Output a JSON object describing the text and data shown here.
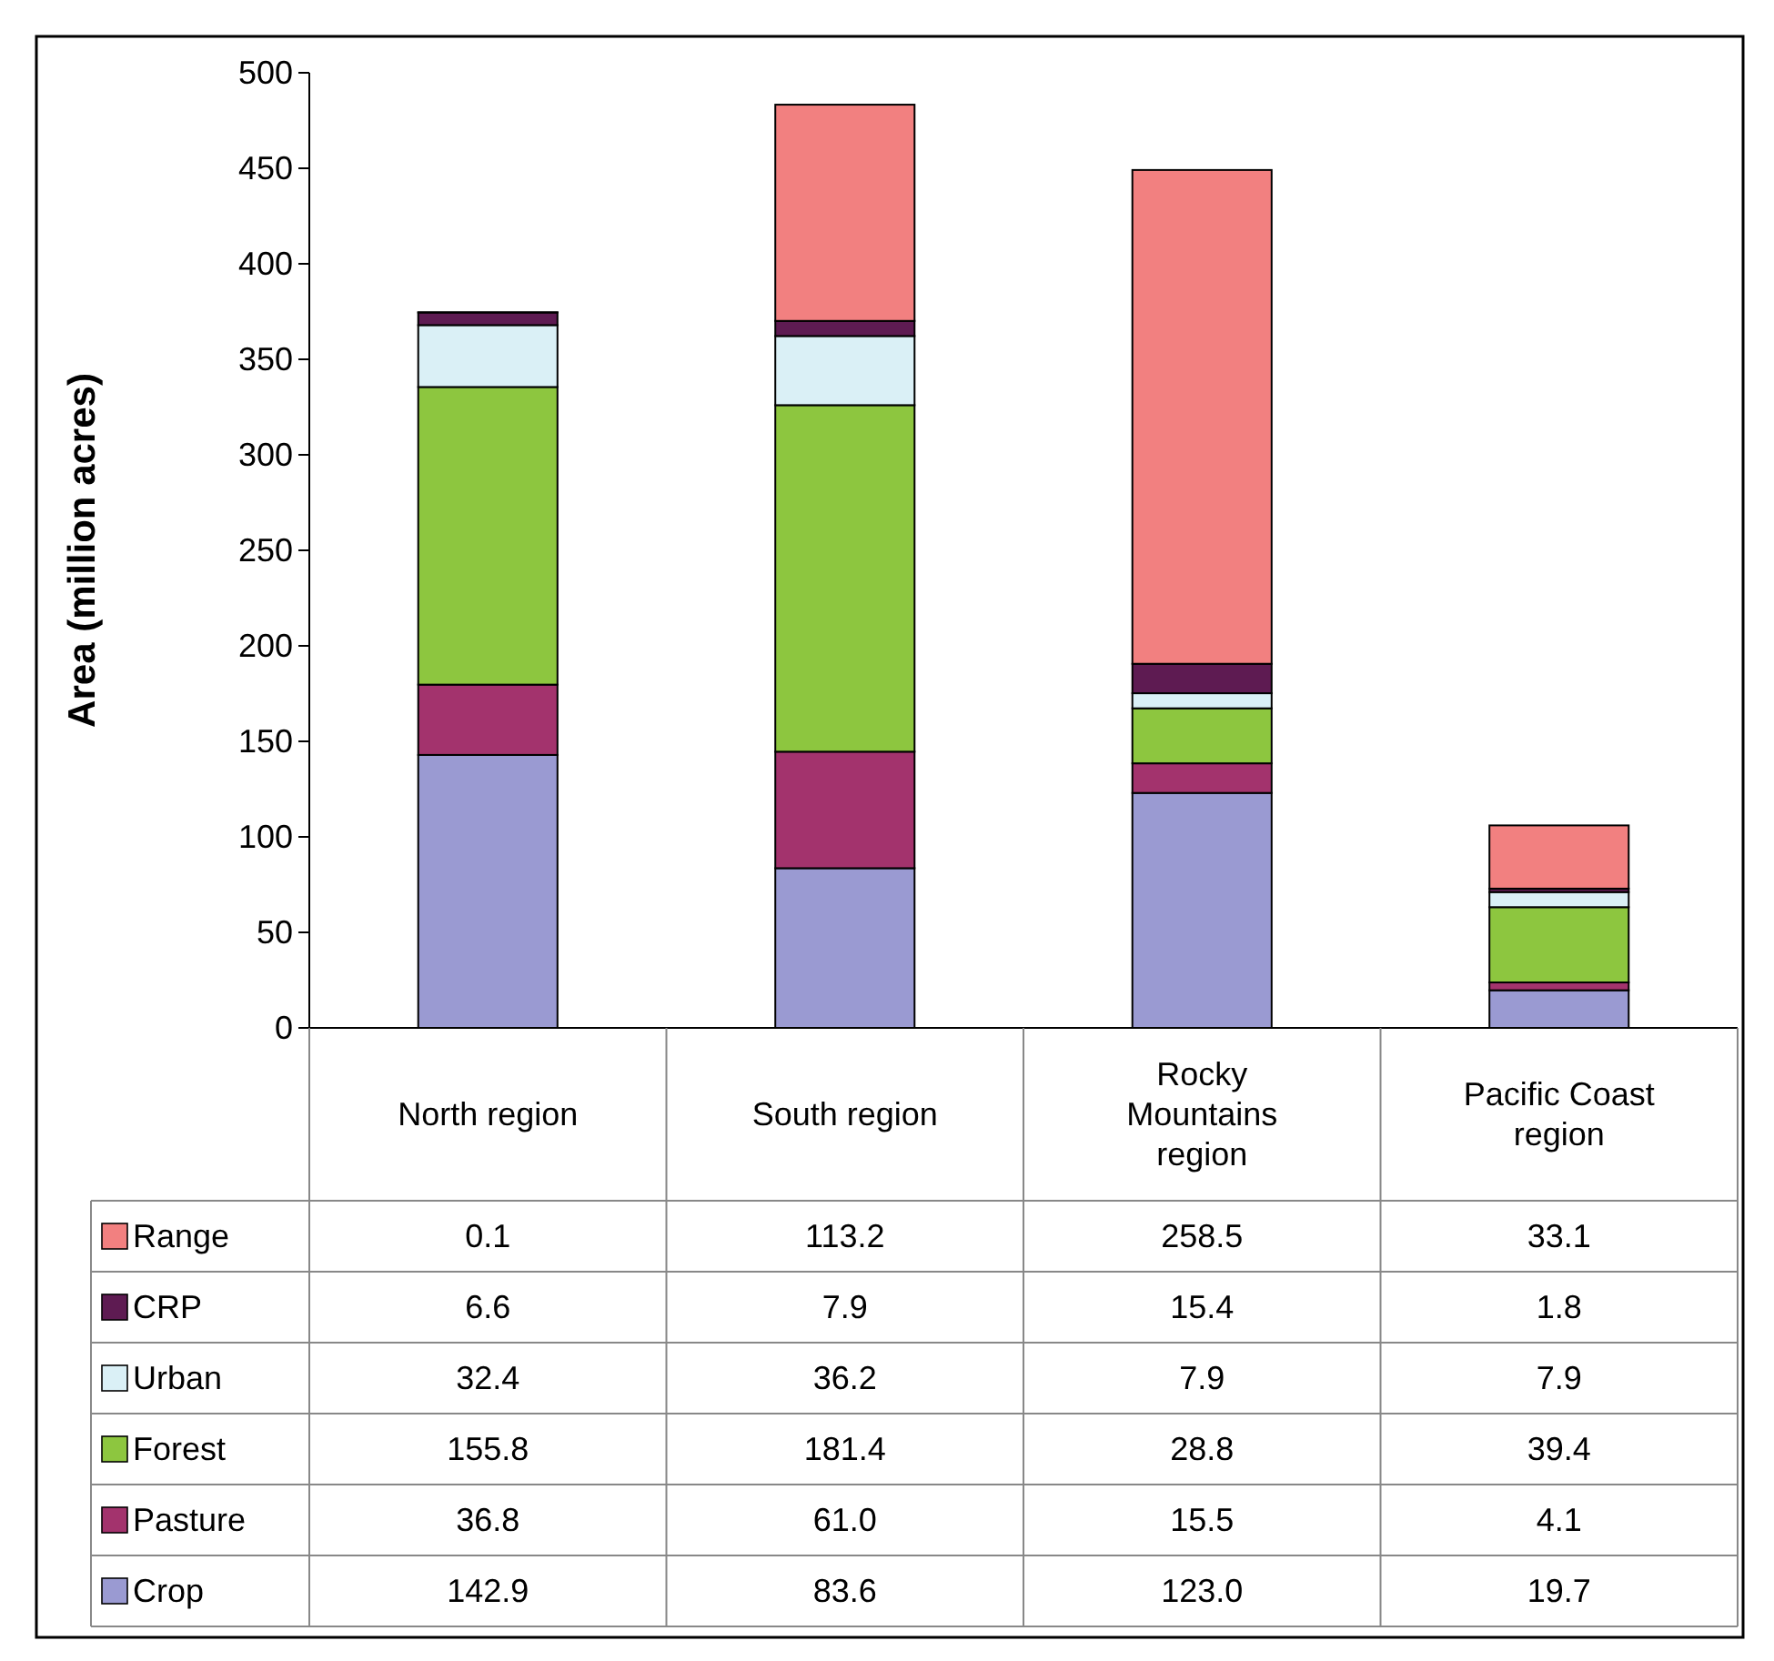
{
  "chart_data": {
    "type": "bar",
    "stacked": true,
    "ylabel": "Area (million acres)",
    "ylim": [
      0,
      500
    ],
    "yticks": [
      0,
      50,
      100,
      150,
      200,
      250,
      300,
      350,
      400,
      450,
      500
    ],
    "grid": false,
    "legend": "bottom",
    "categories": [
      "North region",
      "South region",
      "Rocky Mountains region",
      "Pacific Coast region"
    ],
    "series": [
      {
        "name": "Crop",
        "color": "#9a9ad2",
        "values": [
          142.9,
          83.6,
          123.0,
          19.7
        ],
        "value_labels": [
          "142.9",
          "83.6",
          "123.0",
          "19.7"
        ]
      },
      {
        "name": "Pasture",
        "color": "#a3336d",
        "values": [
          36.8,
          61.0,
          15.5,
          4.1
        ],
        "value_labels": [
          "36.8",
          "61.0",
          "15.5",
          "4.1"
        ]
      },
      {
        "name": "Forest",
        "color": "#8dc63f",
        "values": [
          155.8,
          181.4,
          28.8,
          39.4
        ],
        "value_labels": [
          "155.8",
          "181.4",
          "28.8",
          "39.4"
        ]
      },
      {
        "name": "Urban",
        "color": "#daf0f6",
        "values": [
          32.4,
          36.2,
          7.9,
          7.9
        ],
        "value_labels": [
          "32.4",
          "36.2",
          "7.9",
          "7.9"
        ]
      },
      {
        "name": "CRP",
        "color": "#5e1b52",
        "values": [
          6.6,
          7.9,
          15.4,
          1.8
        ],
        "value_labels": [
          "6.6",
          "7.9",
          "15.4",
          "1.8"
        ]
      },
      {
        "name": "Range",
        "color": "#f28080",
        "values": [
          0.1,
          113.2,
          258.5,
          33.1
        ],
        "value_labels": [
          "0.1",
          "113.2",
          "258.5",
          "33.1"
        ]
      }
    ]
  }
}
